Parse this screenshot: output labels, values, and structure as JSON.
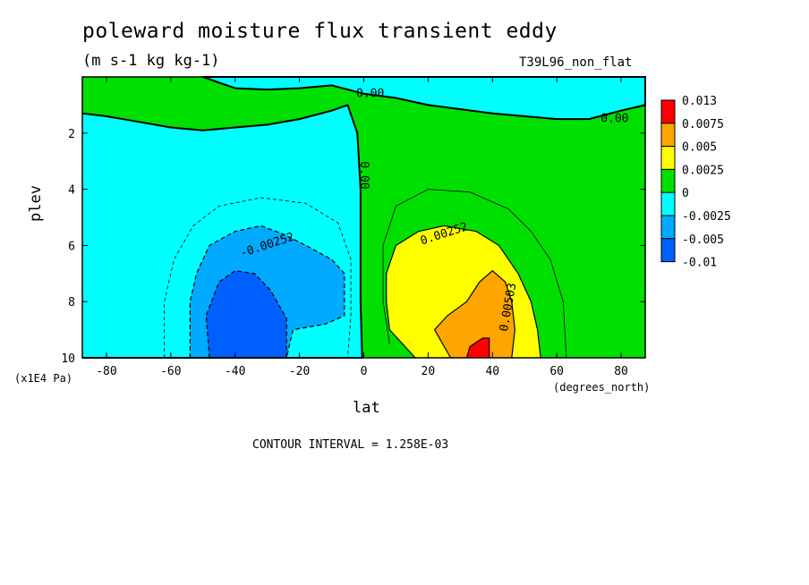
{
  "chart_data": {
    "type": "contour",
    "title": "poleward moisture flux transient eddy",
    "subtitle": "(m s-1 kg kg-1)",
    "run_label": "T39L96_non_flat",
    "xlabel": "lat",
    "x_units": "(degrees_north)",
    "ylabel": "plev",
    "y_units": "(x1E4 Pa)",
    "xlim": [
      -90,
      90
    ],
    "ylim": [
      0,
      10
    ],
    "y_inverted": true,
    "x_ticks": [
      -80,
      -60,
      -40,
      -20,
      0,
      20,
      40,
      60,
      80
    ],
    "y_ticks": [
      2,
      4,
      6,
      8,
      10
    ],
    "contour_interval": "CONTOUR INTERVAL = 1.258E-03",
    "colorbar": {
      "labels": [
        "0.013",
        "0.0075",
        "0.005",
        "0.0025",
        "0",
        "-0.0025",
        "-0.005",
        "-0.01"
      ],
      "colors": [
        "#ff0000",
        "#ffa500",
        "#ffff00",
        "#00e000",
        "#00ffff",
        "#00aaff",
        "#0060ff"
      ]
    },
    "contour_labels": [
      {
        "text": "0.00",
        "lat": 2,
        "plev": 0.6
      },
      {
        "text": "0.00",
        "lat": 78,
        "plev": 1.5
      },
      {
        "text": "0.00",
        "lat": 0,
        "plev": 3.5
      },
      {
        "text": "-0.00252",
        "lat": -30,
        "plev": 6.0
      },
      {
        "text": "0.00252",
        "lat": 25,
        "plev": 5.6
      },
      {
        "text": "0.00503",
        "lat": 45,
        "plev": 8.2
      }
    ],
    "regions": [
      {
        "range": [
          0,
          0.0025
        ],
        "color": "#00e000",
        "polygon": [
          [
            -87.5,
            0
          ],
          [
            87.5,
            0
          ],
          [
            87.5,
            10
          ],
          [
            -87.5,
            10
          ]
        ]
      },
      {
        "range": [
          -0.0025,
          0
        ],
        "color": "#00ffff",
        "polygon": [
          [
            -87.5,
            1.3
          ],
          [
            -80,
            1.4
          ],
          [
            -70,
            1.6
          ],
          [
            -60,
            1.8
          ],
          [
            -50,
            1.9
          ],
          [
            -40,
            1.8
          ],
          [
            -30,
            1.7
          ],
          [
            -20,
            1.5
          ],
          [
            -10,
            1.2
          ],
          [
            -5,
            1.0
          ],
          [
            -2,
            2
          ],
          [
            -1,
            4
          ],
          [
            -1,
            6
          ],
          [
            -1,
            8
          ],
          [
            -0.5,
            10
          ],
          [
            -87.5,
            10
          ]
        ]
      },
      {
        "range": [
          -0.0025,
          0
        ],
        "color": "#00ffff",
        "polygon": [
          [
            -50,
            0
          ],
          [
            -40,
            0.4
          ],
          [
            -30,
            0.45
          ],
          [
            -20,
            0.4
          ],
          [
            -10,
            0.3
          ],
          [
            0,
            0.6
          ],
          [
            10,
            0.75
          ],
          [
            20,
            1
          ],
          [
            40,
            1.3
          ],
          [
            60,
            1.5
          ],
          [
            70,
            1.5
          ],
          [
            80,
            1.2
          ],
          [
            87.5,
            1.0
          ],
          [
            87.5,
            0
          ],
          [
            -50,
            0
          ]
        ]
      },
      {
        "range": [
          -0.005,
          -0.0025
        ],
        "color": "#00aaff",
        "polygon": [
          [
            -54,
            10
          ],
          [
            -54,
            8
          ],
          [
            -52,
            7
          ],
          [
            -48,
            6
          ],
          [
            -40,
            5.5
          ],
          [
            -32,
            5.3
          ],
          [
            -25,
            5.6
          ],
          [
            -18,
            6.0
          ],
          [
            -10,
            6.5
          ],
          [
            -6,
            7.0
          ],
          [
            -6,
            8.5
          ],
          [
            -12,
            8.8
          ],
          [
            -22,
            9.0
          ],
          [
            -24,
            10
          ]
        ]
      },
      {
        "range": [
          -0.01,
          -0.005
        ],
        "color": "#0060ff",
        "polygon": [
          [
            -48,
            10
          ],
          [
            -49,
            8.5
          ],
          [
            -45,
            7.3
          ],
          [
            -40,
            6.9
          ],
          [
            -34,
            7.0
          ],
          [
            -29,
            7.6
          ],
          [
            -26,
            8.2
          ],
          [
            -24,
            8.6
          ],
          [
            -24,
            10
          ]
        ]
      },
      {
        "range": [
          0.0025,
          0.005
        ],
        "color": "#ffff00",
        "polygon": [
          [
            16,
            10
          ],
          [
            8,
            9
          ],
          [
            7,
            8
          ],
          [
            7,
            7
          ],
          [
            10,
            6
          ],
          [
            17,
            5.5
          ],
          [
            25,
            5.3
          ],
          [
            35,
            5.5
          ],
          [
            42,
            6.0
          ],
          [
            48,
            7
          ],
          [
            52,
            8
          ],
          [
            54,
            9
          ],
          [
            55,
            10
          ]
        ]
      },
      {
        "range": [
          0.005,
          0.0075
        ],
        "color": "#ffa500",
        "polygon": [
          [
            27,
            10
          ],
          [
            22,
            9
          ],
          [
            26,
            8.5
          ],
          [
            32,
            8
          ],
          [
            36,
            7.3
          ],
          [
            40,
            6.9
          ],
          [
            44,
            7.3
          ],
          [
            46,
            8
          ],
          [
            47,
            9
          ],
          [
            46,
            10
          ]
        ]
      },
      {
        "range": [
          0.0075,
          0.013
        ],
        "color": "#ff0000",
        "polygon": [
          [
            32,
            10
          ],
          [
            33,
            9.6
          ],
          [
            37,
            9.3
          ],
          [
            39,
            9.3
          ],
          [
            39,
            10
          ]
        ]
      }
    ]
  }
}
